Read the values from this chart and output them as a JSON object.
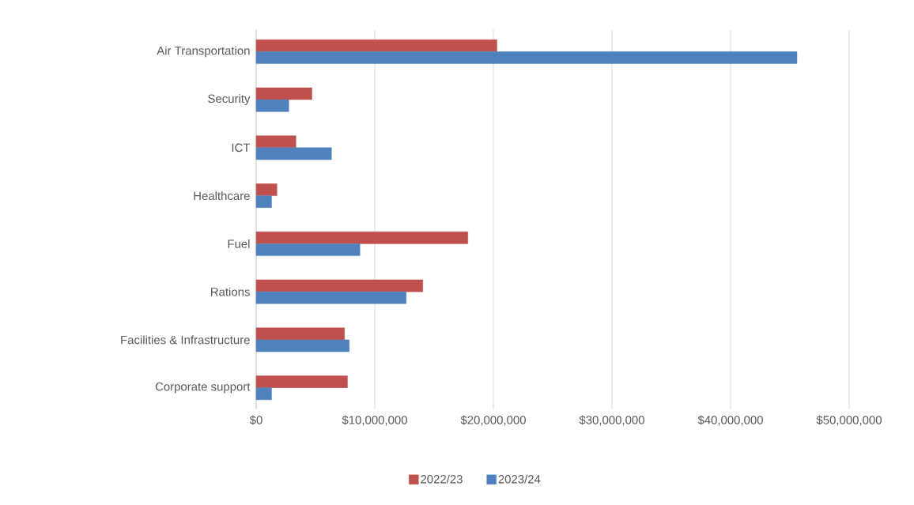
{
  "chart_data": {
    "type": "bar",
    "orientation": "horizontal",
    "categories": [
      "Air Transportation",
      "Security",
      "ICT",
      "Healthcare",
      "Fuel",
      "Rations",
      "Facilities & Infrastructure",
      "Corporate support"
    ],
    "series": [
      {
        "name": "2022/23",
        "color": "#c0504d",
        "values": [
          20300000,
          4700000,
          3350000,
          1750000,
          17850000,
          14050000,
          7450000,
          7700000
        ]
      },
      {
        "name": "2023/24",
        "color": "#4f81bd",
        "values": [
          45600000,
          2750000,
          6350000,
          1300000,
          8750000,
          12650000,
          7850000,
          1300000
        ]
      }
    ],
    "xlim": [
      0,
      50000000
    ],
    "xticks": [
      {
        "value": 0,
        "label": "$0"
      },
      {
        "value": 10000000,
        "label": "$10,000,000"
      },
      {
        "value": 20000000,
        "label": "$20,000,000"
      },
      {
        "value": 30000000,
        "label": "$30,000,000"
      },
      {
        "value": 40000000,
        "label": "$40,000,000"
      },
      {
        "value": 50000000,
        "label": "$50,000,000"
      }
    ],
    "grid": "x",
    "legend": "bottom"
  }
}
